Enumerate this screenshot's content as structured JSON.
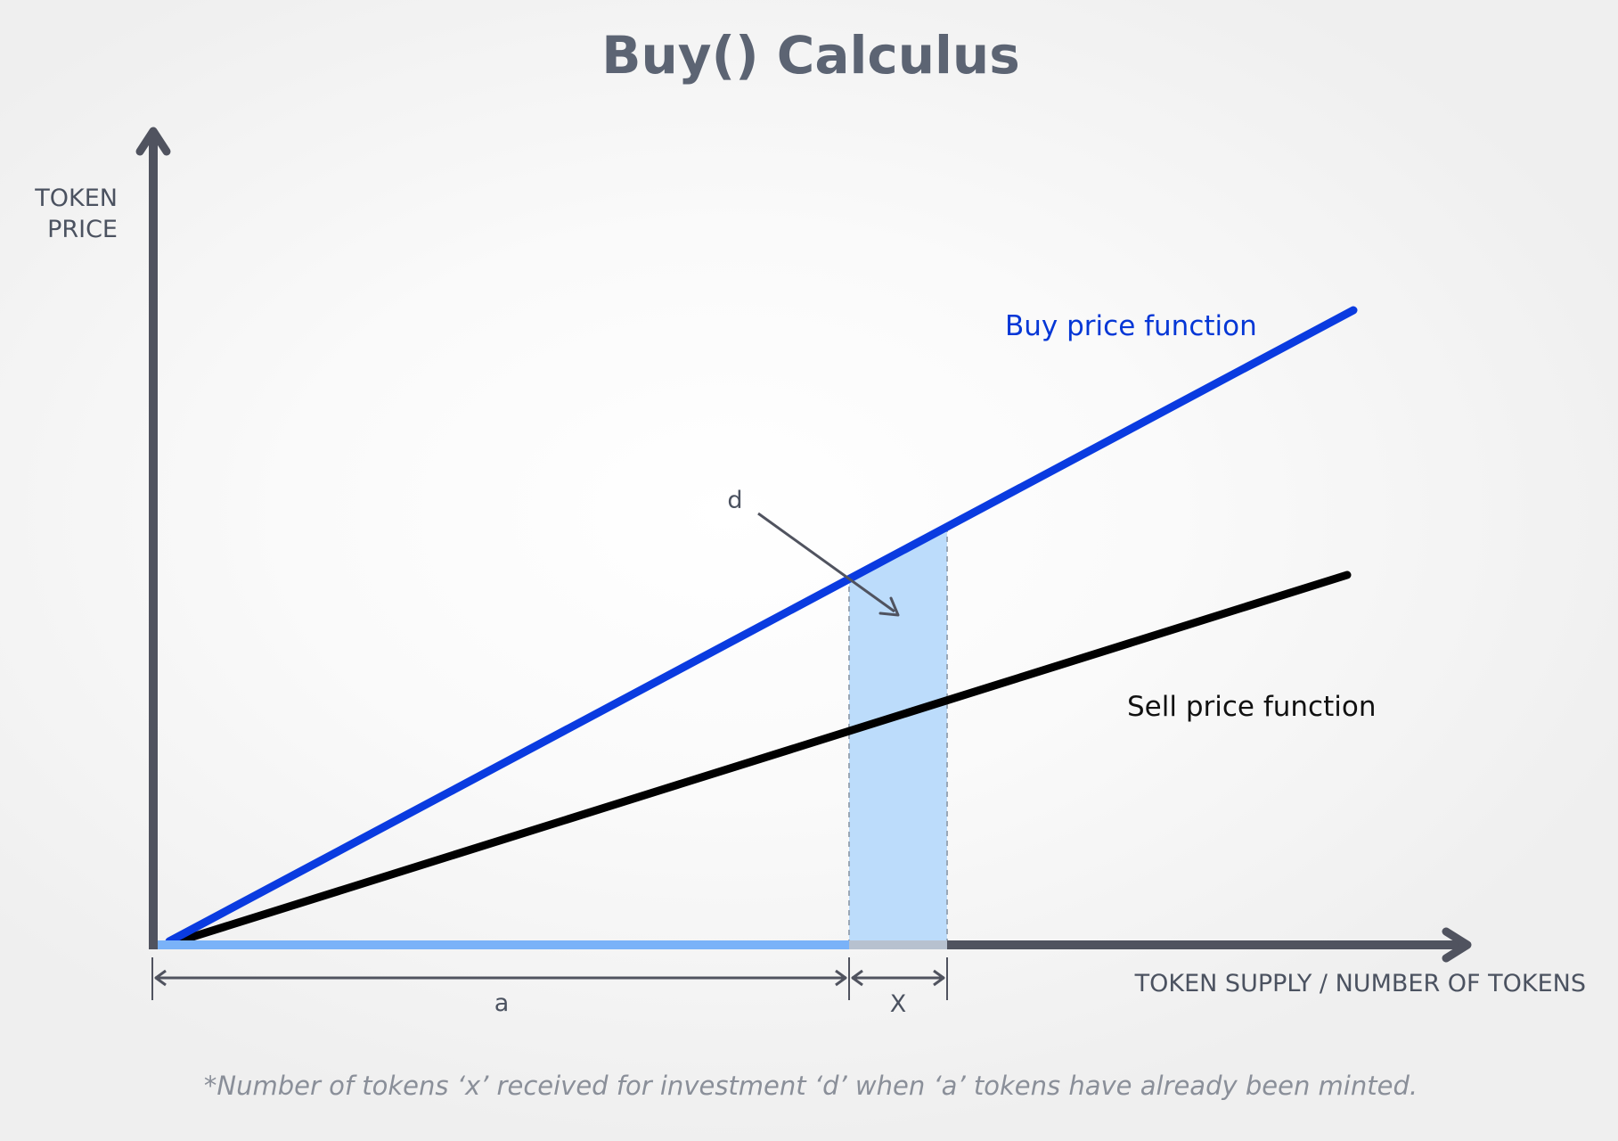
{
  "title": "Buy() Calculus",
  "y_axis_label_line1": "TOKEN",
  "y_axis_label_line2": "PRICE",
  "x_axis_label": "TOKEN SUPPLY / NUMBER OF TOKENS",
  "buy_label": "Buy price function",
  "sell_label": "Sell price function",
  "label_d": "d",
  "label_a": "a",
  "label_x": "X",
  "footnote": "*Number of tokens ‘x’ received for investment ‘d’ when ‘a’ tokens have already been minted.",
  "colors": {
    "axis": "#50535f",
    "buy_line": "#0a3be0",
    "sell_line": "#000000",
    "shaded_area": "#bcdcfb",
    "supply_bar": "#7ab2f8",
    "x_bar": "#b7c1cf"
  }
}
